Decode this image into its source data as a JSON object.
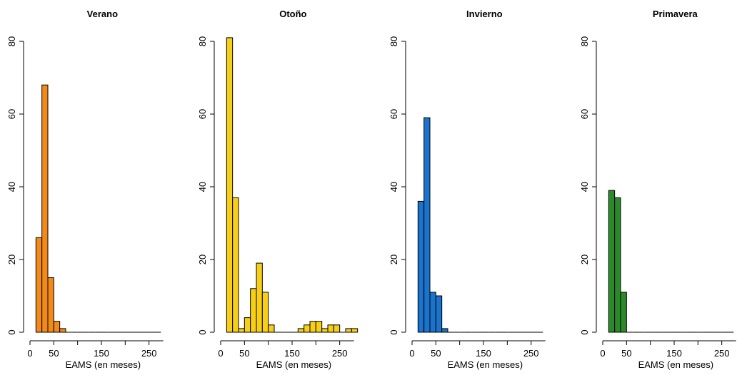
{
  "chart_data": [
    {
      "type": "histogram",
      "title": "Verano",
      "xlabel": "EAMS (en meses)",
      "ylabel": "",
      "xlim": [
        0,
        280
      ],
      "ylim": [
        0,
        80
      ],
      "xticks": [
        0,
        50,
        150,
        250
      ],
      "xticks_minor": [
        100,
        200
      ],
      "yticks": [
        0,
        20,
        40,
        60,
        80
      ],
      "bin_width": 12.5,
      "bin_start": 12.5,
      "values": [
        26,
        68,
        15,
        3,
        1,
        0,
        0,
        0,
        0,
        0,
        0,
        0,
        0,
        0,
        0,
        0,
        0,
        0,
        0,
        0,
        0
      ],
      "color": "#f28a1a"
    },
    {
      "type": "histogram",
      "title": "Otoño",
      "xlabel": "EAMS (en meses)",
      "ylabel": "",
      "xlim": [
        0,
        280
      ],
      "ylim": [
        0,
        80
      ],
      "xticks": [
        0,
        50,
        150,
        250
      ],
      "xticks_minor": [
        100,
        200
      ],
      "yticks": [
        0,
        20,
        40,
        60,
        80
      ],
      "bin_width": 12.5,
      "bin_start": 12.5,
      "values": [
        81,
        37,
        1,
        4,
        12,
        19,
        11,
        2,
        0,
        0,
        0,
        0,
        1,
        2,
        3,
        3,
        1,
        2,
        2,
        0,
        1,
        1
      ],
      "color": "#f7cf16"
    },
    {
      "type": "histogram",
      "title": "Invierno",
      "xlabel": "EAMS (en meses)",
      "ylabel": "",
      "xlim": [
        0,
        280
      ],
      "ylim": [
        0,
        80
      ],
      "xticks": [
        0,
        50,
        150,
        250
      ],
      "xticks_minor": [
        100,
        200
      ],
      "yticks": [
        0,
        20,
        40,
        60,
        80
      ],
      "bin_width": 12.5,
      "bin_start": 12.5,
      "values": [
        36,
        59,
        11,
        10,
        1,
        0,
        0,
        0,
        0,
        0,
        0,
        0,
        0,
        0,
        0,
        0,
        0,
        0,
        0,
        0,
        0
      ],
      "color": "#1a73cc"
    },
    {
      "type": "histogram",
      "title": "Primavera",
      "xlabel": "EAMS (en meses)",
      "ylabel": "",
      "xlim": [
        0,
        280
      ],
      "ylim": [
        0,
        80
      ],
      "xticks": [
        0,
        50,
        150,
        250
      ],
      "xticks_minor": [
        100,
        200
      ],
      "yticks": [
        0,
        20,
        40,
        60,
        80
      ],
      "bin_width": 12.5,
      "bin_start": 12.5,
      "values": [
        39,
        37,
        11,
        0,
        0,
        0,
        0,
        0,
        0,
        0,
        0,
        0,
        0,
        0,
        0,
        0,
        0,
        0,
        0,
        0,
        0
      ],
      "color": "#2a8a2a"
    }
  ]
}
